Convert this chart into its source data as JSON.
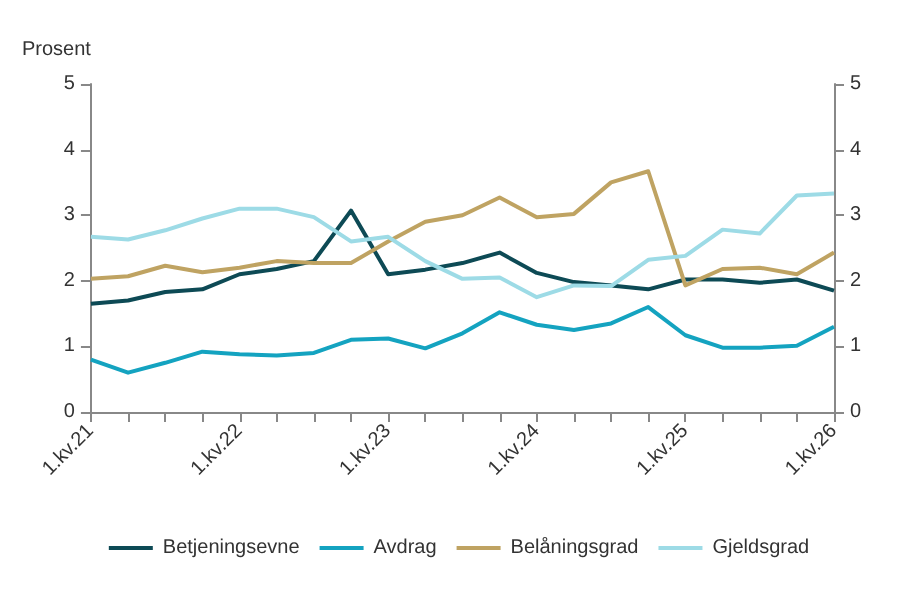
{
  "chart_data": {
    "type": "line",
    "ylabel": "Prosent",
    "categories": [
      "1.kv.21",
      null,
      null,
      null,
      "1.kv.22",
      null,
      null,
      null,
      "1.kv.23",
      null,
      null,
      null,
      "1.kv.24",
      null,
      null,
      null,
      "1.kv.25",
      null,
      null,
      null,
      "1.kv.26"
    ],
    "series": [
      {
        "name": "Betjeningsevne",
        "color": "#0d4a55",
        "values": [
          1.65,
          1.7,
          1.83,
          1.87,
          2.1,
          2.18,
          2.3,
          3.07,
          2.1,
          2.17,
          2.27,
          2.43,
          2.12,
          1.98,
          1.93,
          1.87,
          2.02,
          2.02,
          1.97,
          2.02,
          1.85
        ]
      },
      {
        "name": "Avdrag",
        "color": "#14a3c0",
        "values": [
          0.8,
          0.6,
          0.75,
          0.92,
          0.88,
          0.86,
          0.9,
          1.1,
          1.12,
          0.97,
          1.2,
          1.52,
          1.33,
          1.25,
          1.35,
          1.6,
          1.17,
          0.98,
          0.98,
          1.01,
          1.3
        ]
      },
      {
        "name": "Belåningsgrad",
        "color": "#bfa362",
        "values": [
          2.03,
          2.07,
          2.23,
          2.13,
          2.2,
          2.3,
          2.27,
          2.27,
          2.6,
          2.9,
          3.0,
          3.27,
          2.97,
          3.02,
          3.5,
          3.67,
          1.93,
          2.18,
          2.2,
          2.1,
          2.43
        ]
      },
      {
        "name": "Gjeldsgrad",
        "color": "#9ddbe6",
        "values": [
          2.67,
          2.63,
          2.77,
          2.95,
          3.1,
          3.1,
          2.97,
          2.6,
          2.67,
          2.3,
          2.03,
          2.05,
          1.75,
          1.93,
          1.92,
          2.32,
          2.38,
          2.78,
          2.72,
          3.3,
          3.33
        ]
      }
    ],
    "ylim": [
      0,
      5
    ],
    "yticks": [
      0,
      1,
      2,
      3,
      4,
      5
    ],
    "y2lim": [
      0,
      5
    ],
    "y2ticks": [
      0,
      1,
      2,
      3,
      4,
      5
    ],
    "grid": false,
    "legend": "bottom",
    "marker": "none",
    "line_style": "solid"
  }
}
